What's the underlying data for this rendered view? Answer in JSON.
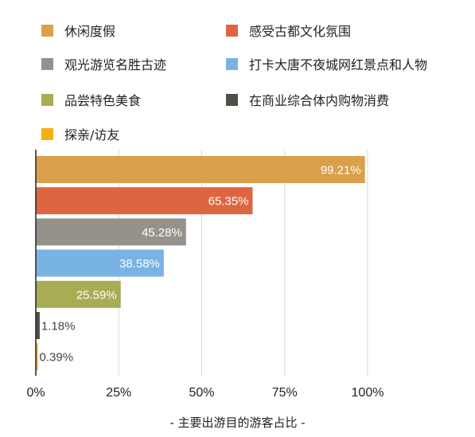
{
  "chart_data": {
    "type": "bar",
    "orientation": "horizontal",
    "categories": [
      "休闲度假",
      "感受古都文化氛围",
      "观光游览名胜古迹",
      "打卡大唐不夜城网红景点和人物",
      "品尝特色美食",
      "在商业综合体内购物消费",
      "探亲/访友"
    ],
    "values": [
      99.21,
      65.35,
      45.28,
      38.58,
      25.59,
      1.18,
      0.39
    ],
    "data_labels": [
      "99.21%",
      "65.35%",
      "45.28%",
      "38.58%",
      "25.59%",
      "1.18%",
      "0.39%"
    ],
    "colors": [
      "#dba04b",
      "#dd6641",
      "#95928b",
      "#79b3e3",
      "#a8ac55",
      "#4d4f49",
      "#f4b019"
    ],
    "xlim": [
      0,
      100
    ],
    "x_ticks": [
      0,
      25,
      50,
      75,
      100
    ],
    "x_tick_labels": [
      "0%",
      "25%",
      "50%",
      "75%",
      "100%"
    ],
    "grid": true,
    "legend_position": "top",
    "caption": "- 主要出游目的游客占比 -"
  }
}
